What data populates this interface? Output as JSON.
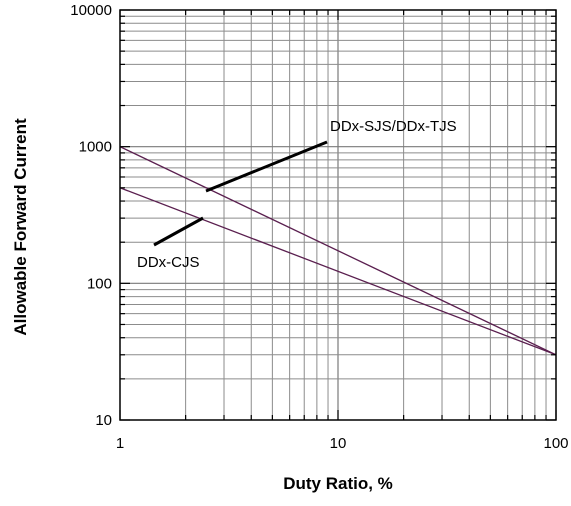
{
  "chart_data": {
    "type": "line",
    "xlabel": "Duty Ratio, %",
    "ylabel": "Allowable Forward Current",
    "xscale": "log",
    "yscale": "log",
    "xlim": [
      1,
      100
    ],
    "ylim": [
      10,
      10000
    ],
    "grid": true,
    "x_ticks": [
      "1",
      "10",
      "100"
    ],
    "y_ticks": [
      "10",
      "100",
      "1000",
      "10000"
    ],
    "line_color": "#5a1f4f",
    "series": [
      {
        "name": "DDx-SJS/DDx-TJS",
        "x": [
          1,
          100
        ],
        "y": [
          1000,
          30
        ]
      },
      {
        "name": "DDx-CJS",
        "x": [
          1,
          100
        ],
        "y": [
          500,
          30
        ]
      }
    ],
    "annotations": [
      {
        "text": "DDx-SJS/DDx-TJS",
        "series": "DDx-SJS/DDx-TJS"
      },
      {
        "text": "DDx-CJS",
        "series": "DDx-CJS"
      }
    ]
  }
}
